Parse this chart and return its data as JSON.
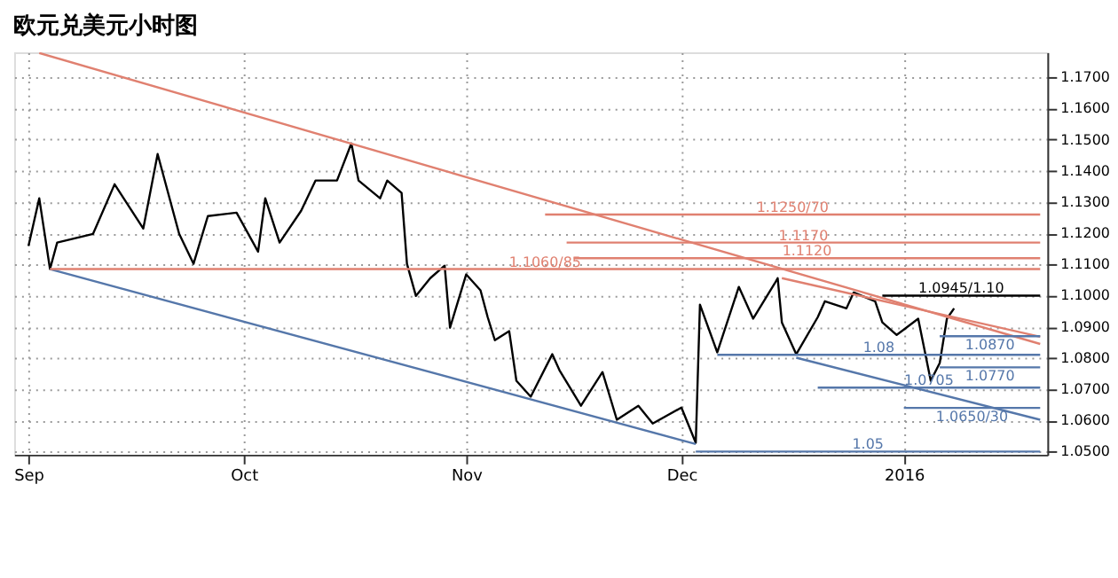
{
  "chart_data": {
    "type": "line",
    "title": "欧元兑美元小时图",
    "xlim": [
      "2015-08-30",
      "2016-01-21"
    ],
    "xticks": [
      {
        "value": "2015-09-01",
        "label": "Sep"
      },
      {
        "value": "2015-10-01",
        "label": "Oct"
      },
      {
        "value": "2015-11-01",
        "label": "Nov"
      },
      {
        "value": "2015-12-01",
        "label": "Dec"
      },
      {
        "value": "2016-01-01",
        "label": "2016"
      }
    ],
    "ylim": [
      1.049,
      1.178
    ],
    "yticks": [
      {
        "value": 1.05,
        "label": "1.0500"
      },
      {
        "value": 1.06,
        "label": "1.0600"
      },
      {
        "value": 1.07,
        "label": "1.0700"
      },
      {
        "value": 1.08,
        "label": "1.0800"
      },
      {
        "value": 1.09,
        "label": "1.0900"
      },
      {
        "value": 1.1,
        "label": "1.1000"
      },
      {
        "value": 1.11,
        "label": "1.1100"
      },
      {
        "value": 1.12,
        "label": "1.1200"
      },
      {
        "value": 1.13,
        "label": "1.1300"
      },
      {
        "value": 1.14,
        "label": "1.1400"
      },
      {
        "value": 1.15,
        "label": "1.1500"
      },
      {
        "value": 1.16,
        "label": "1.1600"
      },
      {
        "value": 1.17,
        "label": "1.1700"
      }
    ],
    "grid": true,
    "series": [
      {
        "color": "#000000",
        "x": [
          "2015-09-01",
          "2015-09-02T12:00",
          "2015-09-04",
          "2015-09-05",
          "2015-09-10",
          "2015-09-13",
          "2015-09-17",
          "2015-09-19",
          "2015-09-22",
          "2015-09-24",
          "2015-09-26",
          "2015-09-30",
          "2015-10-03",
          "2015-10-04",
          "2015-10-06",
          "2015-10-09",
          "2015-10-11",
          "2015-10-14",
          "2015-10-16",
          "2015-10-17",
          "2015-10-20",
          "2015-10-21",
          "2015-10-23",
          "2015-10-23T18:00",
          "2015-10-25",
          "2015-10-27",
          "2015-10-29",
          "2015-10-29T18:00",
          "2015-11-01",
          "2015-11-03",
          "2015-11-04",
          "2015-11-05",
          "2015-11-07",
          "2015-11-08",
          "2015-11-10",
          "2015-11-13",
          "2015-11-14",
          "2015-11-17",
          "2015-11-20",
          "2015-11-22",
          "2015-11-25",
          "2015-11-27",
          "2015-12-01",
          "2015-12-03",
          "2015-12-03T14:00",
          "2015-12-06",
          "2015-12-09",
          "2015-12-11",
          "2015-12-14",
          "2015-12-14T10:00",
          "2015-12-15",
          "2015-12-17",
          "2015-12-20",
          "2015-12-21",
          "2015-12-24",
          "2015-12-25",
          "2015-12-28",
          "2015-12-29",
          "2015-12-31",
          "2016-01-03",
          "2016-01-04T18:00",
          "2016-01-06",
          "2016-01-07",
          "2016-01-08"
        ],
        "values": [
          1.1159,
          1.1312,
          1.1085,
          1.117,
          1.1198,
          1.1357,
          1.1215,
          1.1454,
          1.1198,
          1.1102,
          1.1255,
          1.1266,
          1.1141,
          1.1312,
          1.117,
          1.1272,
          1.1369,
          1.1369,
          1.1488,
          1.1369,
          1.1312,
          1.1369,
          1.1329,
          1.1102,
          1.0999,
          1.1056,
          1.1096,
          1.0897,
          1.1068,
          1.1017,
          1.0931,
          1.0857,
          1.0886,
          1.0727,
          1.0676,
          1.0812,
          1.0761,
          1.0647,
          1.0755,
          1.0602,
          1.0647,
          1.059,
          1.0641,
          1.0528,
          1.0971,
          1.0818,
          1.1028,
          1.0926,
          1.1039,
          1.1056,
          1.0914,
          1.0812,
          1.0931,
          1.0982,
          1.0959,
          1.101,
          1.0982,
          1.0914,
          1.0874,
          1.0926,
          1.0727,
          1.0784,
          1.0926,
          1.0959
        ]
      },
      {
        "color": "#e08070",
        "x": [
          "2015-09-02T12:00",
          "2016-01-20"
        ],
        "values": [
          1.1778,
          1.0845
        ]
      },
      {
        "color": "#e08070",
        "x": [
          "2015-12-15",
          "2016-01-20"
        ],
        "values": [
          1.1056,
          1.0868
        ]
      },
      {
        "color": "#5577aa",
        "x": [
          "2015-09-04",
          "2015-12-03"
        ],
        "values": [
          1.1085,
          1.0524
        ]
      },
      {
        "color": "#5577aa",
        "x": [
          "2015-12-17",
          "2016-01-20"
        ],
        "values": [
          1.0801,
          1.0602
        ]
      },
      {
        "name": "1.1250/70",
        "color": "#e08070",
        "x": [
          "2015-11-12",
          "2016-01-20"
        ],
        "values": [
          1.126,
          1.126
        ]
      },
      {
        "name": "1.1170",
        "color": "#e08070",
        "x": [
          "2015-11-15",
          "2016-01-20"
        ],
        "values": [
          1.117,
          1.117
        ]
      },
      {
        "name": "1.1120",
        "color": "#e08070",
        "x": [
          "2015-11-16",
          "2016-01-20"
        ],
        "values": [
          1.112,
          1.112
        ]
      },
      {
        "name": "1.1060/85",
        "color": "#e08070",
        "x": [
          "2015-09-04",
          "2016-01-20"
        ],
        "values": [
          1.1085,
          1.1085
        ]
      },
      {
        "name": "1.0945/1.10",
        "color": "#000000",
        "x": [
          "2015-12-29",
          "2016-01-20"
        ],
        "values": [
          1.1,
          1.1
        ]
      },
      {
        "name": "1.0870",
        "color": "#5577aa",
        "x": [
          "2016-01-06",
          "2016-01-20"
        ],
        "values": [
          1.087,
          1.087
        ]
      },
      {
        "name": "1.08",
        "color": "#5577aa",
        "x": [
          "2015-12-06",
          "2016-01-20"
        ],
        "values": [
          1.081,
          1.081
        ]
      },
      {
        "name": "1.0770",
        "color": "#5577aa",
        "x": [
          "2016-01-06",
          "2016-01-20"
        ],
        "values": [
          1.077,
          1.077
        ]
      },
      {
        "name": "1.0705",
        "color": "#5577aa",
        "x": [
          "2015-12-20",
          "2016-01-20"
        ],
        "values": [
          1.0705,
          1.0705
        ]
      },
      {
        "name": "1.0650/30",
        "color": "#5577aa",
        "x": [
          "2016-01-01",
          "2016-01-20"
        ],
        "values": [
          1.064,
          1.064
        ]
      },
      {
        "name": "1.05",
        "color": "#5577aa",
        "x": [
          "2015-12-03",
          "2016-01-20"
        ],
        "values": [
          1.05,
          1.05
        ]
      }
    ]
  }
}
